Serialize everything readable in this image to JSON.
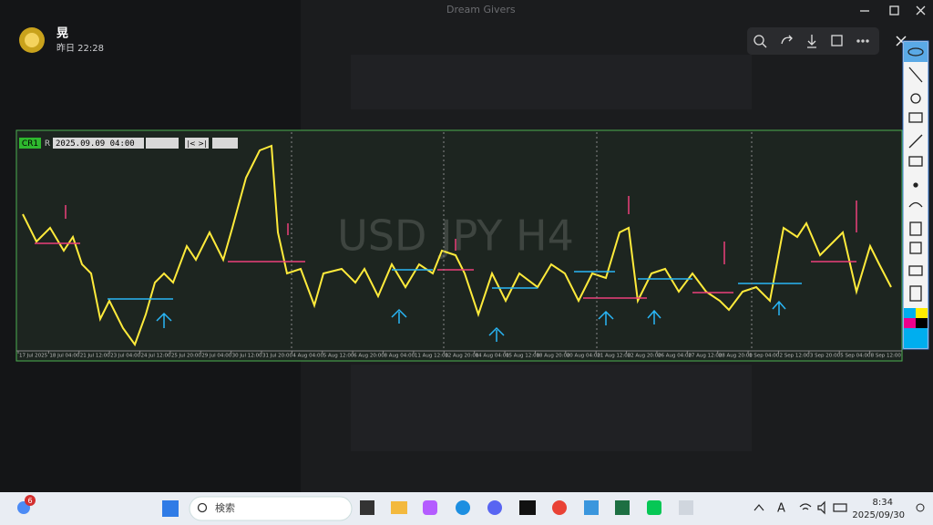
{
  "window": {
    "title": "Dream Givers"
  },
  "post": {
    "author": "晃",
    "time": "昨日 22:28"
  },
  "chart": {
    "mode": "CR1",
    "flag": "R",
    "datetime": "2025.09.09 04:00",
    "nav": "|< >|",
    "watermark": "USD JPY H4",
    "x_labels": [
      "17 Jul 2025",
      "18 Jul 04:00",
      "21 Jul 12:00",
      "23 Jul 04:00",
      "24 Jul 12:00",
      "25 Jul 20:00",
      "29 Jul 04:00",
      "30 Jul 12:00",
      "31 Jul 20:00",
      "4 Aug 04:00",
      "5 Aug 12:00",
      "6 Aug 20:00",
      "8 Aug 04:00",
      "11 Aug 12:00",
      "12 Aug 20:00",
      "14 Aug 04:00",
      "15 Aug 12:00",
      "18 Aug 20:00",
      "20 Aug 04:00",
      "21 Aug 12:00",
      "22 Aug 20:00",
      "26 Aug 04:00",
      "27 Aug 12:00",
      "28 Aug 20:00",
      "1 Sep 04:00",
      "2 Sep 12:00",
      "3 Sep 20:00",
      "5 Sep 04:00",
      "8 Sep 12:00"
    ]
  },
  "taskbar": {
    "badge": "6",
    "search": "検索",
    "time": "8:34",
    "date": "2025/09/30"
  }
}
